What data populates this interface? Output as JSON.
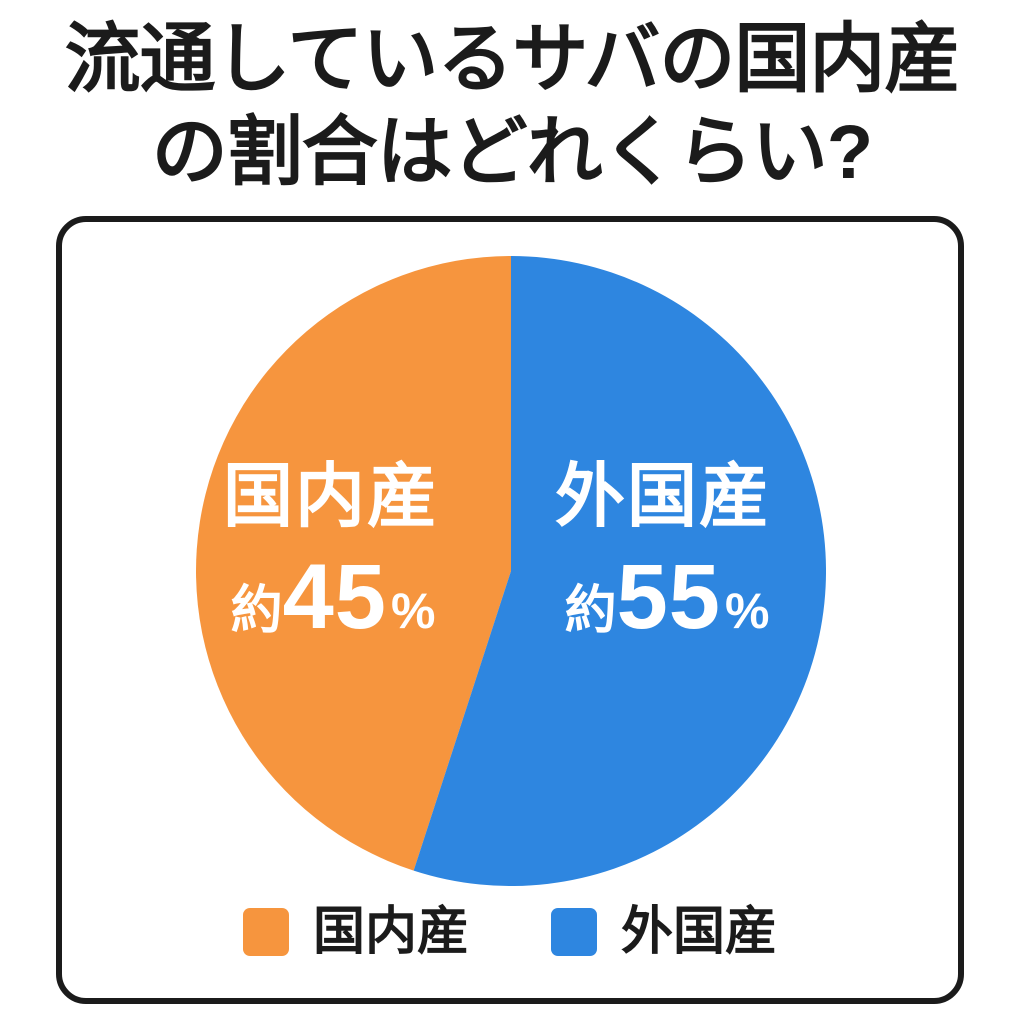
{
  "title": {
    "line1": "流通しているサバの国内産",
    "line2": "の割合はどれくらい?"
  },
  "chart_data": {
    "type": "pie",
    "title": "流通しているサバの国内産の割合はどれくらい?",
    "unit": "%",
    "start_angle_deg": 198,
    "direction": "clockwise",
    "legend_position": "bottom",
    "slices": [
      {
        "id": "domestic",
        "label": "国内産",
        "value": 45,
        "value_prefix": "約",
        "value_text": "45",
        "value_suffix": "%",
        "display_text": "国内産 約45%",
        "color": "#F6953E"
      },
      {
        "id": "foreign",
        "label": "外国産",
        "value": 55,
        "value_prefix": "約",
        "value_text": "55",
        "value_suffix": "%",
        "display_text": "外国産 約55%",
        "color": "#2E86E0"
      }
    ],
    "colors": {
      "domestic": "#F6953E",
      "foreign": "#2E86E0",
      "text_on_slice": "#ffffff",
      "outline": "#1b1b1b"
    }
  }
}
